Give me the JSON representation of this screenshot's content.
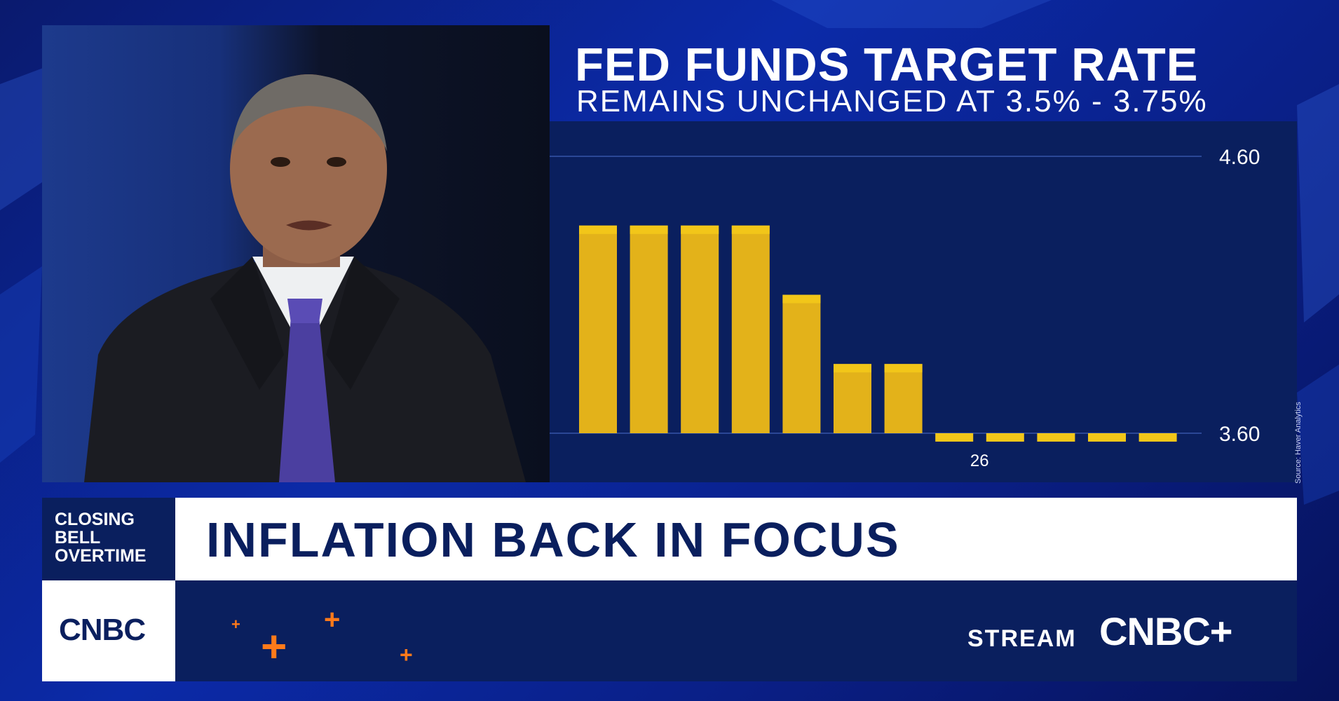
{
  "graphic": {
    "title": "FED FUNDS TARGET RATE",
    "subtitle": "REMAINS UNCHANGED AT 3.5% - 3.75%",
    "source": "Source: Haver Analytics"
  },
  "chart_data": {
    "type": "bar",
    "categories": [
      "",
      "",
      "",
      "",
      "",
      "",
      "",
      "26",
      "",
      "",
      "",
      ""
    ],
    "values": [
      4.35,
      4.35,
      4.35,
      4.35,
      4.1,
      3.85,
      3.85,
      3.6,
      3.6,
      3.6,
      3.6,
      3.6
    ],
    "base": 3.45,
    "ylim": [
      3.45,
      4.6
    ],
    "yticks": [
      4.6,
      3.6
    ],
    "ytick_labels": [
      "4.60",
      "3.60"
    ],
    "xtick_label": "26",
    "title": "FED FUNDS TARGET RATE",
    "xlabel": "",
    "ylabel": "",
    "colors": {
      "bar": "#e3b21a",
      "bar_cap": "#f2c619",
      "background": "#0a1f5e",
      "grid": "#2b4796"
    }
  },
  "lower_third": {
    "show_name_lines": [
      "CLOSING",
      "BELL",
      "OVERTIME"
    ],
    "headline": "INFLATION BACK IN FOCUS",
    "network_logo": "CNBC",
    "stream_label": "STREAM",
    "stream_logo": "CNBC+"
  },
  "icons": {
    "network": "peacock-logo-icon",
    "decoration": "plus-icon",
    "accent_color": "#ff7a1a"
  }
}
